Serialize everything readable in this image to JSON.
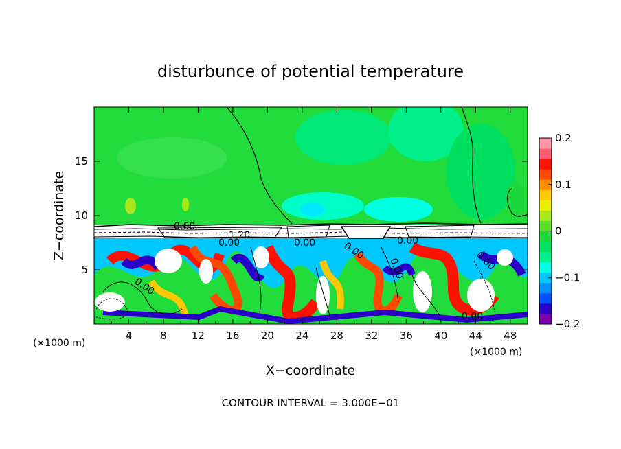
{
  "chart_data": {
    "type": "heatmap",
    "title": "disturbunce of potential temperature",
    "xlabel": "X−coordinate",
    "ylabel": "Z−coordinate",
    "x_unit_left": "(×1000 m)",
    "x_unit_right": "(×1000 m)",
    "xlim": [
      0,
      50
    ],
    "ylim": [
      0,
      20
    ],
    "x_ticks": [
      4,
      8,
      12,
      16,
      20,
      24,
      28,
      32,
      36,
      40,
      44,
      48
    ],
    "x_tick_labels": [
      "4",
      "8",
      "12",
      "16",
      "20",
      "24",
      "28",
      "32",
      "36",
      "40",
      "44",
      "48"
    ],
    "y_ticks": [
      5,
      10,
      15
    ],
    "y_tick_labels": [
      "5",
      "10",
      "15"
    ],
    "colorbar": {
      "min": -0.2,
      "max": 0.2,
      "ticks": [
        0.2,
        0.1,
        0,
        -0.1,
        -0.2
      ],
      "tick_labels": [
        "0.2",
        "0.1",
        "0",
        "−0.1",
        "−0.2"
      ],
      "colors": [
        "#7a00a8",
        "#2a00c8",
        "#0050ff",
        "#0090ff",
        "#00c8ff",
        "#00ffe0",
        "#00f08c",
        "#00e060",
        "#1cd83c",
        "#5adc28",
        "#a8e81c",
        "#e8f000",
        "#ffc800",
        "#ff8c00",
        "#ff4800",
        "#ff1000",
        "#ff5a6e",
        "#ff96a8"
      ]
    },
    "contour_labels": [
      "0.60",
      "1.20",
      "0.00",
      "0.00",
      "0.00",
      "0.00",
      "0.00",
      "0.00",
      "0.00",
      "0.00"
    ],
    "footer": "CONTOUR INTERVAL = 3.000E−01"
  }
}
